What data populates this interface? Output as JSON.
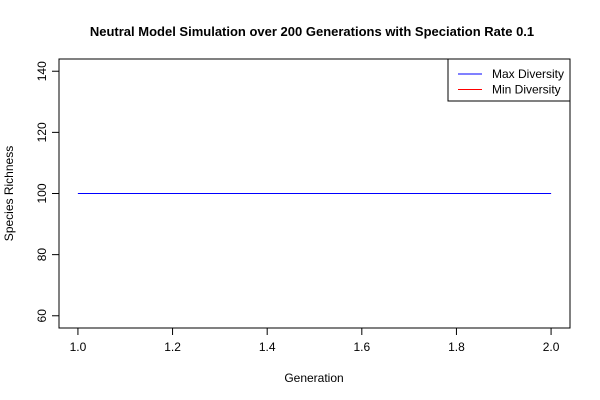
{
  "chart_data": {
    "type": "line",
    "title": "Neutral Model Simulation over 200 Generations with Speciation Rate 0.1",
    "xlabel": "Generation",
    "ylabel": "Species Richness",
    "xlim": [
      0.96,
      2.04
    ],
    "ylim": [
      56,
      144
    ],
    "x_ticks": [
      1.0,
      1.2,
      1.4,
      1.6,
      1.8,
      2.0
    ],
    "x_tick_labels": [
      "1.0",
      "1.2",
      "1.4",
      "1.6",
      "1.8",
      "2.0"
    ],
    "y_ticks": [
      60,
      80,
      100,
      120,
      140
    ],
    "y_tick_labels": [
      "60",
      "80",
      "100",
      "120",
      "140"
    ],
    "grid": false,
    "legend_position": "top-right",
    "series": [
      {
        "name": "Max Diversity",
        "color": "#0000ff",
        "x": [
          1,
          2
        ],
        "y": [
          100,
          100
        ]
      },
      {
        "name": "Min Diversity",
        "color": "#ff0000",
        "x": [
          1,
          2
        ],
        "y": [
          100,
          100
        ]
      }
    ]
  }
}
